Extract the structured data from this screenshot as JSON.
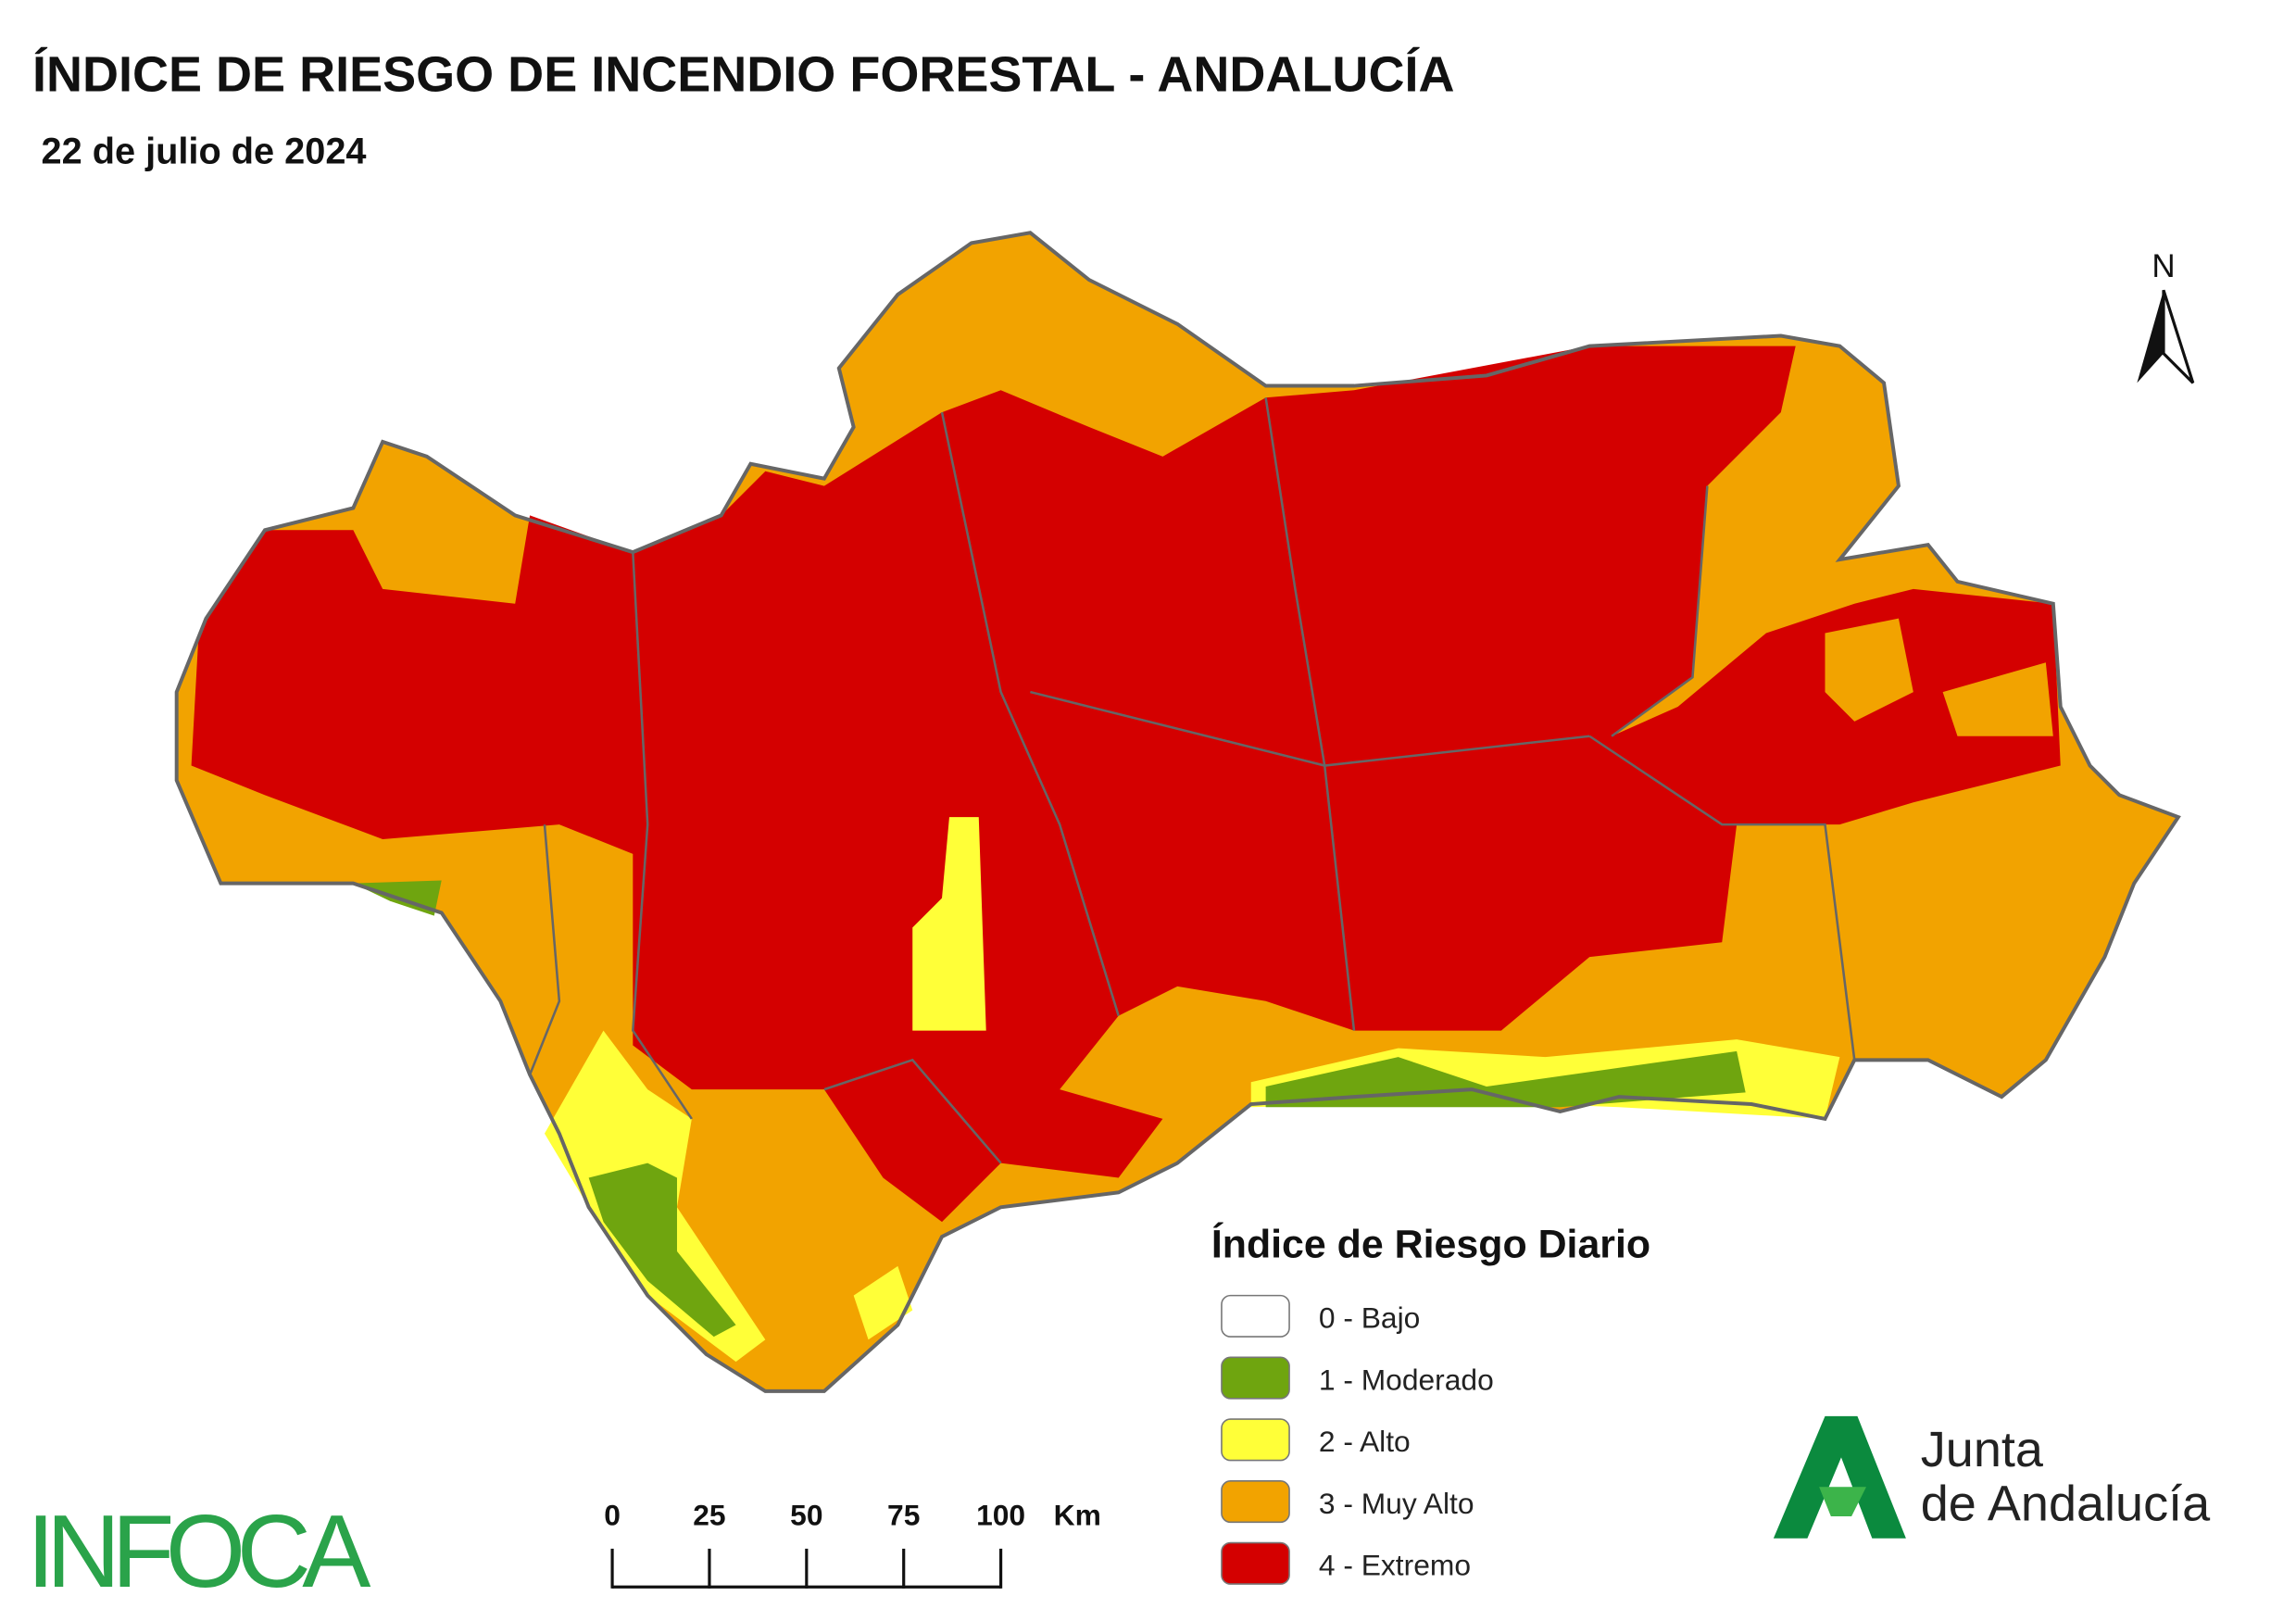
{
  "header": {
    "title": "ÍNDICE DE RIESGO DE INCENDIO FORESTAL - ANDALUCÍA",
    "subtitle": "22 de julio de 2024"
  },
  "legend": {
    "title": "Índice de Riesgo Diario",
    "items": [
      {
        "label": "0 - Bajo",
        "color": "#ffffff"
      },
      {
        "label": "1 - Moderado",
        "color": "#6fa50f"
      },
      {
        "label": "2 - Alto",
        "color": "#ffff38"
      },
      {
        "label": "3 - Muy Alto",
        "color": "#f2a300"
      },
      {
        "label": "4 - Extremo",
        "color": "#d40000"
      }
    ]
  },
  "scale_bar": {
    "ticks": [
      0,
      25,
      50,
      75,
      100
    ],
    "unit": "Km"
  },
  "north_arrow": {
    "label": "N"
  },
  "logos": {
    "infoca": "INFOCA",
    "junta_line1": "Junta",
    "junta_line2": "de Andalucía"
  }
}
